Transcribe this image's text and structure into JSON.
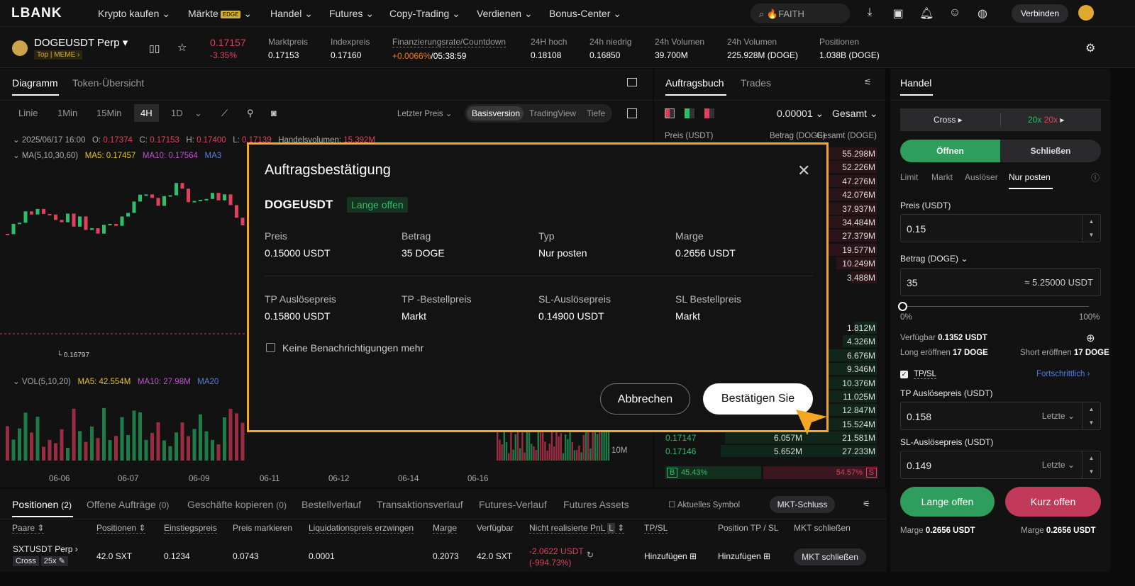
{
  "nav": {
    "logo": "LBANK",
    "items": [
      "Krypto kaufen",
      "Märkte",
      "Handel",
      "Futures",
      "Copy-Trading",
      "Verdienen",
      "Bonus-Center"
    ],
    "edge_badge": "EDGE",
    "search_value": "FAITH",
    "connect": "Verbinden"
  },
  "ticker": {
    "symbol": "DOGEUSDT Perp",
    "tags": "Top | MEME ›",
    "price": "0.17157",
    "change": "-3.35%",
    "stats": [
      {
        "label": "Marktpreis",
        "value": "0.17153"
      },
      {
        "label": "Indexpreis",
        "value": "0.17160"
      },
      {
        "label": "Finanzierungsrate/Countdown",
        "value_rate": "+0.0066%",
        "value_cd": "/05:38:59"
      },
      {
        "label": "24H hoch",
        "value": "0.18108"
      },
      {
        "label": "24h niedrig",
        "value": "0.16850"
      },
      {
        "label": "24h Volumen",
        "value": "39.700M"
      },
      {
        "label": "24h Volumen",
        "value": "225.928M (DOGE)"
      },
      {
        "label": "Positionen",
        "value": "1.038B (DOGE)"
      }
    ]
  },
  "chart": {
    "tabs": [
      "Diagramm",
      "Token-Übersicht"
    ],
    "timeframes": [
      "Linie",
      "1Min",
      "15Min",
      "4H",
      "1D"
    ],
    "price_type": "Letzter Preis",
    "views": [
      "Basisversion",
      "TradingView",
      "Tiefe"
    ],
    "ohlc": {
      "date": "2025/06/17 16:00",
      "o_label": "O:",
      "o": "0.17374",
      "c_label": "C:",
      "c": "0.17153",
      "h_label": "H:",
      "h": "0.17400",
      "l_label": "L:",
      "l": "0.17139",
      "vol_label": "Handelsvolumen:",
      "vol": "15.392M"
    },
    "ma": {
      "label": "MA(5,10,30,60)",
      "ma5": "MA5: 0.17457",
      "ma10": "MA10: 0.17564",
      "ma30": "MA3"
    },
    "low_marker": "0.16797",
    "vol": {
      "label": "VOL(5,10,20)",
      "ma5": "MA5: 42.554M",
      "ma10": "MA10: 27.98M",
      "ma20": "MA20"
    },
    "vol_axis": "10M",
    "dates": [
      "06-06",
      "06-07",
      "06-09",
      "06-11",
      "06-12",
      "06-14",
      "06-16"
    ]
  },
  "orderbook": {
    "tabs": [
      "Auftragsbuch",
      "Trades"
    ],
    "tick": "0.00001",
    "mode": "Gesamt",
    "headers": [
      "Preis (USDT)",
      "Betrag (DOGE)",
      "Gesamt (DOGE)"
    ],
    "ask_totals": [
      "55.298M",
      "52.226M",
      "47.276M",
      "42.076M",
      "37.937M",
      "34.484M",
      "27.379M",
      "19.577M",
      "10.249M",
      "3.488M"
    ],
    "bid_totals": [
      "1.812M",
      "4.326M",
      "6.676M",
      "9.346M",
      "10.376M",
      "11.025M",
      "12.847M",
      "15.524M"
    ],
    "bids_visible": [
      {
        "price": "0.17147",
        "amount": "6.057M",
        "total": "21.581M"
      },
      {
        "price": "0.17146",
        "amount": "5.652M",
        "total": "27.233M"
      }
    ],
    "buy_label": "B",
    "buy_pct": "45.43%",
    "sell_pct": "54.57%",
    "sell_label": "S"
  },
  "trade": {
    "title": "Handel",
    "margin_mode": "Cross",
    "lev_long": "20x",
    "lev_short": "20x",
    "open": "Öffnen",
    "close": "Schließen",
    "order_types": [
      "Limit",
      "Markt",
      "Auslöser",
      "Nur posten"
    ],
    "price_label": "Preis (USDT)",
    "price": "0.15",
    "amount_label": "Betrag (DOGE)",
    "amount": "35",
    "amount_usdt": "≈ 5.25000 USDT",
    "slider_min": "0%",
    "slider_max": "100%",
    "slider_value": 0,
    "avail_label": "Verfügbar",
    "avail": "0.1352 USDT",
    "long_label": "Long eröffnen",
    "long": "17 DOGE",
    "short_label": "Short eröffnen",
    "short": "17 DOGE",
    "tpsl": "TP/SL",
    "advanced": "Fortschrittlich ›",
    "tp_label": "TP Auslösepreis (USDT)",
    "tp": "0.158",
    "sl_label": "SL-Auslösepreis (USDT)",
    "sl": "0.149",
    "last": "Letzte",
    "long_btn": "Lange offen",
    "short_btn": "Kurz offen",
    "margin_label": "Marge",
    "margin_long": "0.2656  USDT",
    "margin_short": "0.2656  USDT"
  },
  "positions": {
    "tabs": [
      "Positionen",
      "Offene Aufträge",
      "Geschäfte kopieren",
      "Bestellverlauf",
      "Transaktionsverlauf",
      "Futures-Verlauf",
      "Futures Assets"
    ],
    "counts": [
      "(2)",
      "(0)",
      "(0)"
    ],
    "current_symbol": "Aktuelles Symbol",
    "mkt_close_all": "MKT-Schluss",
    "headers": [
      "Paare",
      "Positionen",
      "Einstiegspreis",
      "Preis markieren",
      "Liquidationspreis erzwingen",
      "Marge",
      "Verfügbar",
      "Nicht realisierte PnL",
      "TP/SL",
      "Position TP / SL",
      "MKT schließen"
    ],
    "row": {
      "pair": "SXTUSDT Perp ›",
      "mode": "Cross",
      "lev": "25x",
      "size": "42.0 SXT",
      "entry": "0.1234",
      "mark": "0.0743",
      "liq": "0.0001",
      "margin": "0.2073",
      "avail": "42.0 SXT",
      "pnl": "-2.0622 USDT",
      "pnl_pct": "(-994.73%)",
      "tpsl": "Hinzufügen",
      "pos_tpsl": "Hinzufügen",
      "close": "MKT schließen"
    }
  },
  "modal": {
    "title": "Auftragsbestätigung",
    "symbol": "DOGEUSDT",
    "side": "Lange offen",
    "fields": [
      {
        "label": "Preis",
        "value": "0.15000 USDT"
      },
      {
        "label": "Betrag",
        "value": "35 DOGE"
      },
      {
        "label": "Typ",
        "value": "Nur posten"
      },
      {
        "label": "Marge",
        "value": "0.2656 USDT"
      },
      {
        "label": "TP Auslösepreis",
        "value": "0.15800 USDT"
      },
      {
        "label": "TP -Bestellpreis",
        "value": "Markt"
      },
      {
        "label": "SL-Auslösepreis",
        "value": "0.14900 USDT"
      },
      {
        "label": "SL Bestellpreis",
        "value": "Markt"
      }
    ],
    "no_notify": "Keine Benachrichtigungen mehr",
    "cancel": "Abbrechen",
    "confirm": "Bestätigen Sie"
  },
  "colors": {
    "accent": "#f5a623",
    "up": "#2ebd6b",
    "down": "#e0405e"
  }
}
